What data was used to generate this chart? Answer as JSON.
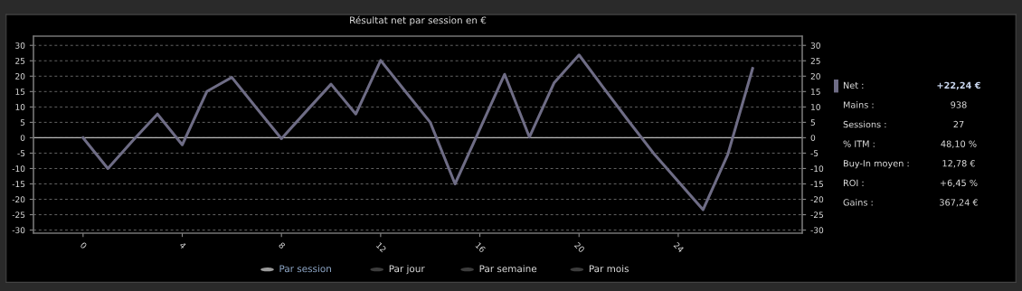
{
  "chart_data": [
    {
      "type": "line",
      "title": "Résultat net par session en €",
      "x": [
        0,
        1,
        2,
        3,
        4,
        5,
        6,
        7,
        8,
        9,
        10,
        11,
        12,
        13,
        14,
        15,
        16,
        17,
        18,
        19,
        20,
        21,
        22,
        23,
        24,
        25,
        26,
        27
      ],
      "series": [
        {
          "color": "#6e6c85",
          "values": [
            0,
            -10,
            -1,
            7.7,
            -2.3,
            15.1,
            19.6,
            9.6,
            -0.3,
            8.6,
            17.4,
            7.7,
            25.1,
            15,
            5,
            -15,
            2.8,
            20.6,
            0.2,
            17.9,
            26.9,
            16.1,
            5.4,
            -5,
            -14.2,
            -23.4,
            -5.4,
            22.5
          ]
        }
      ],
      "xlim": [
        -2,
        29
      ],
      "xticks": [
        0,
        4,
        8,
        12,
        16,
        20,
        24
      ],
      "ylim": [
        -31,
        33
      ],
      "yticks": [
        -30,
        -25,
        -20,
        -15,
        -10,
        -5,
        0,
        5,
        10,
        15,
        20,
        25,
        30
      ],
      "y2lim": [
        -31,
        33
      ],
      "y2ticks": [
        -30,
        -25,
        -20,
        -15,
        -10,
        -5,
        0,
        5,
        10,
        15,
        20,
        25,
        30
      ],
      "grid": "y",
      "marker": "none",
      "line_style": "solid",
      "ref_lines": [
        {
          "axis": "y",
          "value": 0,
          "color": "#bbbbbb"
        }
      ],
      "annotations": [
        "Par session",
        "Par jour",
        "Par semaine",
        "Par mois"
      ]
    },
    {
      "type": "other",
      "annotations": [
        "Net :",
        "+22,24 €",
        "Mains :",
        "938",
        "Sessions :",
        "27",
        "% ITM :",
        "48,10 %",
        "Buy-In moyen :",
        "12,78 €",
        "ROI :",
        "+6,45 %",
        "Gains :",
        "367,24 €"
      ]
    }
  ]
}
